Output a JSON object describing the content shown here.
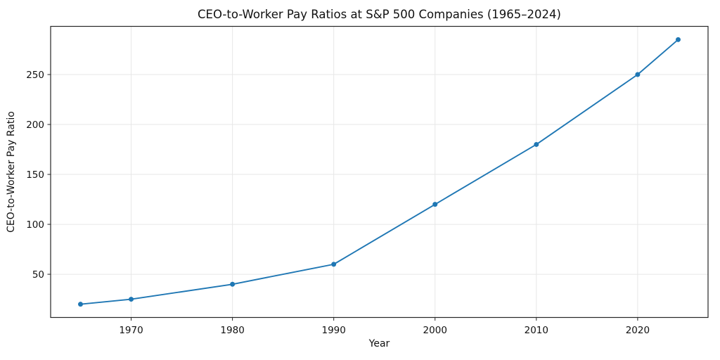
{
  "chart_data": {
    "type": "line",
    "title": "CEO-to-Worker Pay Ratios at S&P 500 Companies (1965–2024)",
    "xlabel": "Year",
    "ylabel": "CEO-to-Worker Pay Ratio",
    "x": [
      1965,
      1970,
      1980,
      1990,
      2000,
      2010,
      2020,
      2024
    ],
    "values": [
      20,
      25,
      40,
      60,
      120,
      180,
      250,
      285
    ],
    "xlim": [
      1962.05,
      2026.95
    ],
    "ylim": [
      6.75,
      298.25
    ],
    "xticks": [
      1970,
      1980,
      1990,
      2000,
      2010,
      2020
    ],
    "yticks": [
      50,
      100,
      150,
      200,
      250
    ],
    "grid": true,
    "legend": "none",
    "line_color": "#1f77b4",
    "marker": "circle",
    "marker_size": 3.5,
    "line_width": 1.9,
    "grid_color": "#e7e7e7",
    "axis_color": "#262626",
    "background_color": "#ffffff"
  }
}
